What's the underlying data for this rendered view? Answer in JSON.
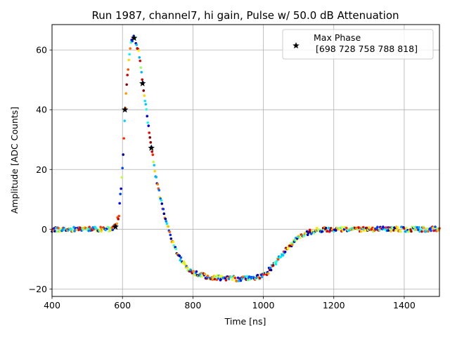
{
  "chart_data": {
    "type": "scatter",
    "title": "Run 1987, channel7, hi gain, Pulse w/ 50.0 dB Attenuation",
    "xlabel": "Time [ns]",
    "ylabel": "Amplitude [ADC Counts]",
    "xlim": [
      400,
      1500
    ],
    "ylim": [
      -22.5,
      68.5
    ],
    "x_ticks": [
      400,
      600,
      800,
      1000,
      1200,
      1400
    ],
    "x_tick_labels": [
      "400",
      "600",
      "800",
      "1000",
      "1200",
      "1400"
    ],
    "y_ticks": [
      -20,
      0,
      20,
      40,
      60
    ],
    "y_tick_labels": [
      "−20",
      "0",
      "20",
      "40",
      "60"
    ],
    "grid": true,
    "legend": {
      "placement": "upper-right",
      "entries": [
        {
          "marker": "black-star",
          "line1": "Max Phase",
          "line2": "[698 728 758 788 818]"
        }
      ]
    },
    "colormap": "jet",
    "series": [
      {
        "marker": "dot",
        "phases": 5,
        "waveform": [
          [
            400,
            0.0
          ],
          [
            560,
            0.0
          ],
          [
            570,
            0.1
          ],
          [
            580,
            1.0
          ],
          [
            590,
            5.0
          ],
          [
            600,
            20.0
          ],
          [
            605,
            34.0
          ],
          [
            610,
            45.0
          ],
          [
            615,
            53.0
          ],
          [
            620,
            59.0
          ],
          [
            625,
            62.5
          ],
          [
            630,
            64.0
          ],
          [
            635,
            64.0
          ],
          [
            640,
            62.0
          ],
          [
            645,
            60.0
          ],
          [
            650,
            56.0
          ],
          [
            660,
            47.0
          ],
          [
            670,
            38.0
          ],
          [
            680,
            29.0
          ],
          [
            690,
            21.0
          ],
          [
            700,
            14.5
          ],
          [
            710,
            9.0
          ],
          [
            720,
            4.5
          ],
          [
            730,
            0.5
          ],
          [
            740,
            -3.5
          ],
          [
            750,
            -6.5
          ],
          [
            760,
            -9.0
          ],
          [
            770,
            -11.0
          ],
          [
            780,
            -12.5
          ],
          [
            800,
            -14.5
          ],
          [
            820,
            -15.3
          ],
          [
            850,
            -16.0
          ],
          [
            880,
            -16.4
          ],
          [
            910,
            -16.5
          ],
          [
            940,
            -16.6
          ],
          [
            970,
            -16.5
          ],
          [
            990,
            -16.0
          ],
          [
            1010,
            -14.5
          ],
          [
            1030,
            -12.0
          ],
          [
            1050,
            -9.0
          ],
          [
            1070,
            -6.0
          ],
          [
            1090,
            -3.8
          ],
          [
            1110,
            -2.0
          ],
          [
            1130,
            -1.0
          ],
          [
            1150,
            -0.4
          ],
          [
            1180,
            0.0
          ],
          [
            1500,
            0.0
          ]
        ]
      },
      {
        "name": "Max Phase",
        "marker": "star",
        "color": "#000000",
        "points": [
          [
            580,
            0.8
          ],
          [
            607,
            40.0
          ],
          [
            633,
            64.0
          ],
          [
            657,
            48.8
          ],
          [
            682,
            27.2
          ]
        ]
      }
    ]
  }
}
